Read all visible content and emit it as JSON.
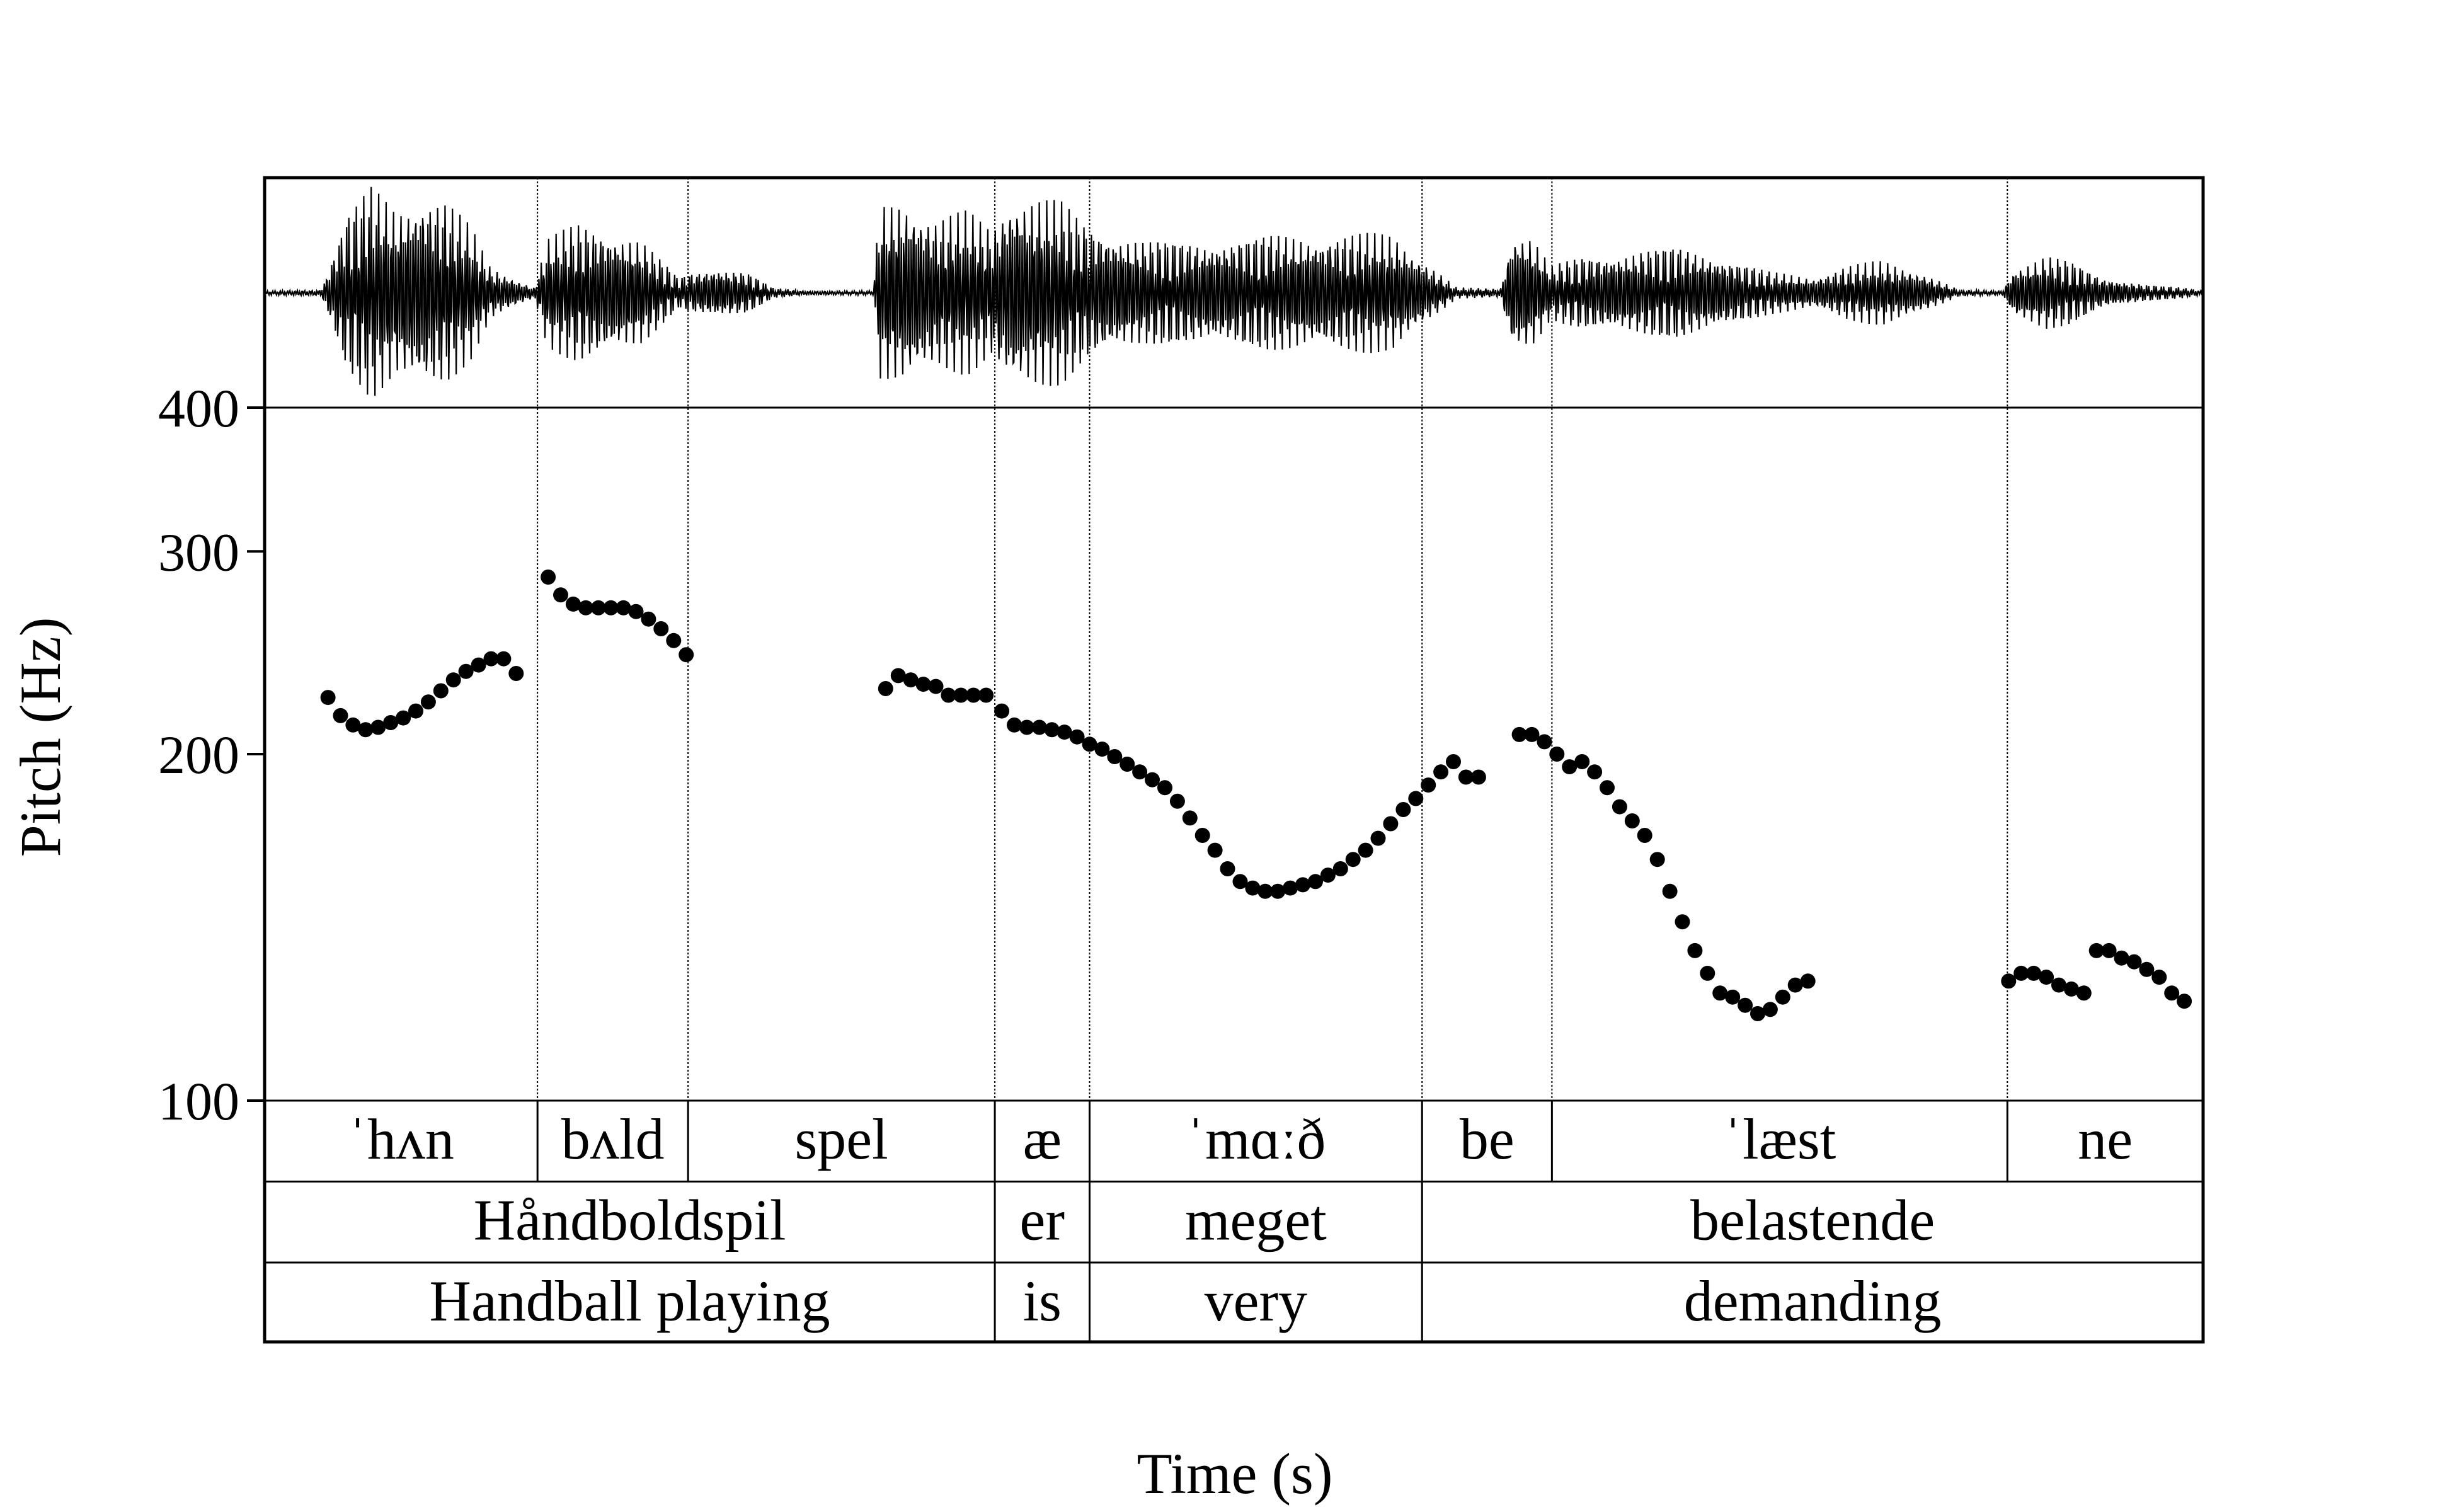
{
  "chart_data": {
    "type": "scatter",
    "title": "",
    "xlabel": "Time (s)",
    "ylabel": "Pitch (Hz)",
    "yscale": "log",
    "ylim": [
      100,
      400
    ],
    "xlim": [
      0,
      3.09
    ],
    "yticks": [
      {
        "value": 100,
        "label": "100"
      },
      {
        "value": 200,
        "label": "200"
      },
      {
        "value": 300,
        "label": "300"
      },
      {
        "value": 400,
        "label": "400"
      }
    ],
    "grid": false,
    "legend": "none",
    "series": [
      {
        "points": [
          [
            0.101,
            224
          ],
          [
            0.121,
            216
          ],
          [
            0.141,
            212
          ],
          [
            0.161,
            210
          ],
          [
            0.181,
            211
          ],
          [
            0.201,
            213
          ],
          [
            0.221,
            215
          ],
          [
            0.241,
            218
          ],
          [
            0.261,
            222
          ],
          [
            0.281,
            227
          ],
          [
            0.301,
            232
          ],
          [
            0.321,
            236
          ],
          [
            0.341,
            239
          ],
          [
            0.361,
            242
          ],
          [
            0.381,
            242
          ],
          [
            0.401,
            235
          ],
          [
            0.452,
            285
          ],
          [
            0.472,
            275
          ],
          [
            0.492,
            270
          ],
          [
            0.512,
            268
          ],
          [
            0.532,
            268
          ],
          [
            0.552,
            268
          ],
          [
            0.572,
            268
          ],
          [
            0.592,
            266
          ],
          [
            0.612,
            262
          ],
          [
            0.632,
            257
          ],
          [
            0.652,
            251
          ],
          [
            0.672,
            244
          ],
          [
            0.99,
            228
          ],
          [
            1.01,
            234
          ],
          [
            1.03,
            232
          ],
          [
            1.05,
            230
          ],
          [
            1.07,
            229
          ],
          [
            1.09,
            225
          ],
          [
            1.11,
            225
          ],
          [
            1.13,
            225
          ],
          [
            1.15,
            225
          ],
          [
            1.175,
            218
          ],
          [
            1.195,
            212
          ],
          [
            1.215,
            211
          ],
          [
            1.235,
            211
          ],
          [
            1.255,
            210
          ],
          [
            1.275,
            209
          ],
          [
            1.295,
            207
          ],
          [
            1.315,
            204
          ],
          [
            1.335,
            202
          ],
          [
            1.355,
            199
          ],
          [
            1.375,
            196
          ],
          [
            1.395,
            193
          ],
          [
            1.415,
            190
          ],
          [
            1.435,
            187
          ],
          [
            1.455,
            182
          ],
          [
            1.475,
            176
          ],
          [
            1.495,
            170
          ],
          [
            1.515,
            165
          ],
          [
            1.535,
            159
          ],
          [
            1.555,
            155
          ],
          [
            1.575,
            153
          ],
          [
            1.595,
            152
          ],
          [
            1.615,
            152
          ],
          [
            1.635,
            153
          ],
          [
            1.655,
            154
          ],
          [
            1.675,
            155
          ],
          [
            1.695,
            157
          ],
          [
            1.715,
            159
          ],
          [
            1.735,
            162
          ],
          [
            1.755,
            165
          ],
          [
            1.775,
            169
          ],
          [
            1.795,
            174
          ],
          [
            1.815,
            179
          ],
          [
            1.835,
            183
          ],
          [
            1.855,
            188
          ],
          [
            1.875,
            193
          ],
          [
            1.895,
            197
          ],
          [
            1.915,
            191
          ],
          [
            1.935,
            191
          ],
          [
            2.0,
            208
          ],
          [
            2.02,
            208
          ],
          [
            2.04,
            205
          ],
          [
            2.06,
            200
          ],
          [
            2.08,
            195
          ],
          [
            2.1,
            197
          ],
          [
            2.12,
            193
          ],
          [
            2.14,
            187
          ],
          [
            2.16,
            180
          ],
          [
            2.18,
            175
          ],
          [
            2.2,
            170
          ],
          [
            2.22,
            162
          ],
          [
            2.24,
            152
          ],
          [
            2.26,
            143
          ],
          [
            2.28,
            135
          ],
          [
            2.3,
            129
          ],
          [
            2.32,
            124
          ],
          [
            2.34,
            123
          ],
          [
            2.36,
            121
          ],
          [
            2.38,
            119
          ],
          [
            2.4,
            120
          ],
          [
            2.42,
            123
          ],
          [
            2.44,
            126
          ],
          [
            2.46,
            127
          ],
          [
            2.78,
            127
          ],
          [
            2.8,
            129
          ],
          [
            2.82,
            129
          ],
          [
            2.84,
            128
          ],
          [
            2.86,
            126
          ],
          [
            2.88,
            125
          ],
          [
            2.9,
            124
          ],
          [
            2.92,
            135
          ],
          [
            2.94,
            135
          ],
          [
            2.96,
            133
          ],
          [
            2.98,
            132
          ],
          [
            3.0,
            130
          ],
          [
            3.02,
            128
          ],
          [
            3.04,
            124
          ],
          [
            3.06,
            122
          ]
        ]
      }
    ],
    "boundaries": [
      0.435,
      0.675,
      1.164,
      1.315,
      1.845,
      2.052,
      2.778
    ],
    "tiers": [
      {
        "intervals": [
          {
            "start": 0,
            "end": 0.435,
            "text": "ˈhʌn"
          },
          {
            "start": 0.435,
            "end": 0.675,
            "text": "bʌld"
          },
          {
            "start": 0.675,
            "end": 1.164,
            "text": "spel"
          },
          {
            "start": 1.164,
            "end": 1.315,
            "text": "æ"
          },
          {
            "start": 1.315,
            "end": 1.845,
            "text": "ˈmɑːð"
          },
          {
            "start": 1.845,
            "end": 2.052,
            "text": "be"
          },
          {
            "start": 2.052,
            "end": 2.778,
            "text": "ˈlæst"
          },
          {
            "start": 2.778,
            "end": 3.09,
            "text": "ne"
          }
        ]
      },
      {
        "intervals": [
          {
            "start": 0,
            "end": 1.164,
            "text": "Håndboldspil"
          },
          {
            "start": 1.164,
            "end": 1.315,
            "text": "er"
          },
          {
            "start": 1.315,
            "end": 1.845,
            "text": "meget"
          },
          {
            "start": 1.845,
            "end": 3.09,
            "text": "belastende"
          }
        ]
      },
      {
        "intervals": [
          {
            "start": 0,
            "end": 1.164,
            "text": "Handball playing"
          },
          {
            "start": 1.164,
            "end": 1.315,
            "text": "is"
          },
          {
            "start": 1.315,
            "end": 1.845,
            "text": "very"
          },
          {
            "start": 1.845,
            "end": 3.09,
            "text": "demanding"
          }
        ]
      }
    ],
    "waveform_envelope": [
      [
        0.0,
        0.02
      ],
      [
        0.09,
        0.03
      ],
      [
        0.1,
        0.2
      ],
      [
        0.13,
        0.75
      ],
      [
        0.17,
        1.0
      ],
      [
        0.21,
        0.8
      ],
      [
        0.25,
        0.95
      ],
      [
        0.29,
        0.85
      ],
      [
        0.33,
        0.6
      ],
      [
        0.36,
        0.25
      ],
      [
        0.43,
        0.05
      ],
      [
        0.45,
        0.5
      ],
      [
        0.5,
        0.65
      ],
      [
        0.55,
        0.6
      ],
      [
        0.6,
        0.5
      ],
      [
        0.66,
        0.15
      ],
      [
        0.68,
        0.2
      ],
      [
        0.72,
        0.25
      ],
      [
        0.77,
        0.2
      ],
      [
        0.81,
        0.05
      ],
      [
        0.86,
        0.02
      ],
      [
        0.97,
        0.02
      ],
      [
        0.98,
        0.8
      ],
      [
        1.02,
        0.9
      ],
      [
        1.07,
        0.7
      ],
      [
        1.12,
        0.75
      ],
      [
        1.16,
        0.6
      ],
      [
        1.19,
        0.95
      ],
      [
        1.23,
        0.9
      ],
      [
        1.27,
        0.85
      ],
      [
        1.31,
        0.65
      ],
      [
        1.4,
        0.5
      ],
      [
        1.5,
        0.5
      ],
      [
        1.6,
        0.55
      ],
      [
        1.7,
        0.55
      ],
      [
        1.8,
        0.55
      ],
      [
        1.85,
        0.3
      ],
      [
        1.9,
        0.05
      ],
      [
        1.97,
        0.04
      ],
      [
        1.99,
        0.6
      ],
      [
        2.02,
        0.55
      ],
      [
        2.05,
        0.25
      ],
      [
        2.1,
        0.35
      ],
      [
        2.18,
        0.4
      ],
      [
        2.25,
        0.45
      ],
      [
        2.32,
        0.35
      ],
      [
        2.4,
        0.2
      ],
      [
        2.47,
        0.15
      ],
      [
        2.52,
        0.25
      ],
      [
        2.58,
        0.3
      ],
      [
        2.64,
        0.2
      ],
      [
        2.7,
        0.03
      ],
      [
        2.77,
        0.02
      ],
      [
        2.79,
        0.25
      ],
      [
        2.84,
        0.35
      ],
      [
        2.88,
        0.3
      ],
      [
        2.93,
        0.15
      ],
      [
        3.0,
        0.08
      ],
      [
        3.06,
        0.05
      ],
      [
        3.09,
        0.02
      ]
    ]
  }
}
